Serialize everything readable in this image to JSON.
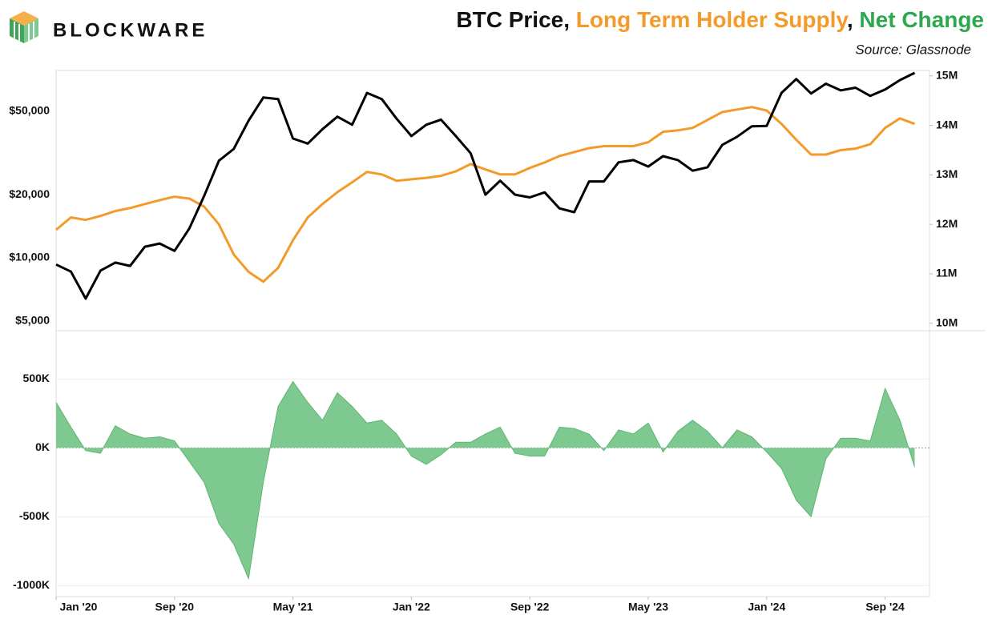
{
  "logo": "BLOCKWARE",
  "title": [
    {
      "text": "BTC Price",
      "color": "#111111"
    },
    {
      "text": ", ",
      "color": "#111111"
    },
    {
      "text": "Long Term Holder Supply",
      "color": "#f39a2b"
    },
    {
      "text": ", ",
      "color": "#111111"
    },
    {
      "text": "Net Change",
      "color": "#2ea84e"
    }
  ],
  "source": "Source: Glassnode",
  "chart_data": [
    {
      "type": "line",
      "x": [
        "2020-01",
        "2020-02",
        "2020-03",
        "2020-04",
        "2020-05",
        "2020-06",
        "2020-07",
        "2020-08",
        "2020-09",
        "2020-10",
        "2020-11",
        "2020-12",
        "2021-01",
        "2021-02",
        "2021-03",
        "2021-04",
        "2021-05",
        "2021-06",
        "2021-07",
        "2021-08",
        "2021-09",
        "2021-10",
        "2021-11",
        "2021-12",
        "2022-01",
        "2022-02",
        "2022-03",
        "2022-04",
        "2022-05",
        "2022-06",
        "2022-07",
        "2022-08",
        "2022-09",
        "2022-10",
        "2022-11",
        "2022-12",
        "2023-01",
        "2023-02",
        "2023-03",
        "2023-04",
        "2023-05",
        "2023-06",
        "2023-07",
        "2023-08",
        "2023-09",
        "2023-10",
        "2023-11",
        "2023-12",
        "2024-01",
        "2024-02",
        "2024-03",
        "2024-04",
        "2024-05",
        "2024-06",
        "2024-07",
        "2024-08",
        "2024-09",
        "2024-10",
        "2024-11"
      ],
      "xlim": [
        "2020-01",
        "2024-12"
      ],
      "log_scale": true,
      "ylim": [
        4500,
        78000
      ],
      "yticks": [
        {
          "value": 5000,
          "label": "$5,000"
        },
        {
          "value": 10000,
          "label": "$10,000"
        },
        {
          "value": 20000,
          "label": "$20,000"
        },
        {
          "value": 50000,
          "label": "$50,000"
        }
      ],
      "y2lim": [
        9.85,
        15.11
      ],
      "y2ticks": [
        {
          "value": 10,
          "label": "10M"
        },
        {
          "value": 11,
          "label": "11M"
        },
        {
          "value": 12,
          "label": "12M"
        },
        {
          "value": 13,
          "label": "13M"
        },
        {
          "value": 14,
          "label": "14M"
        },
        {
          "value": 15,
          "label": "15M"
        }
      ],
      "series": [
        {
          "color": "#000000",
          "values": [
            9300,
            8600,
            6400,
            8700,
            9500,
            9150,
            11300,
            11700,
            10800,
            13800,
            19700,
            29000,
            33000,
            45000,
            58000,
            57000,
            37000,
            35000,
            41000,
            47000,
            43000,
            61000,
            57000,
            46000,
            38000,
            43000,
            45500,
            38000,
            31500,
            20000,
            23300,
            20000,
            19400,
            20500,
            17200,
            16500,
            23100,
            23100,
            28500,
            29200,
            27200,
            30500,
            29200,
            26000,
            27000,
            34500,
            37700,
            42300,
            42500,
            61000,
            71000,
            60600,
            67500,
            62700,
            64600,
            59000,
            63300,
            70200,
            76000
          ]
        },
        {
          "color": "#f39a2b",
          "axis": "y2",
          "values": [
            11.89,
            12.14,
            12.09,
            12.17,
            12.27,
            12.33,
            12.41,
            12.49,
            12.56,
            12.52,
            12.36,
            12.0,
            11.39,
            11.04,
            10.84,
            11.12,
            11.68,
            12.14,
            12.41,
            12.65,
            12.85,
            13.06,
            13.01,
            12.88,
            12.91,
            12.94,
            12.98,
            13.07,
            13.22,
            13.11,
            13.01,
            13.01,
            13.14,
            13.25,
            13.38,
            13.46,
            13.54,
            13.58,
            13.58,
            13.58,
            13.66,
            13.87,
            13.9,
            13.95,
            14.11,
            14.27,
            14.32,
            14.37,
            14.3,
            14.03,
            13.71,
            13.41,
            13.41,
            13.5,
            13.53,
            13.62,
            13.95,
            14.14,
            14.03
          ]
        }
      ]
    },
    {
      "type": "area",
      "x": [
        "2020-01",
        "2020-02",
        "2020-03",
        "2020-04",
        "2020-05",
        "2020-06",
        "2020-07",
        "2020-08",
        "2020-09",
        "2020-10",
        "2020-11",
        "2020-12",
        "2021-01",
        "2021-02",
        "2021-03",
        "2021-04",
        "2021-05",
        "2021-06",
        "2021-07",
        "2021-08",
        "2021-09",
        "2021-10",
        "2021-11",
        "2021-12",
        "2022-01",
        "2022-02",
        "2022-03",
        "2022-04",
        "2022-05",
        "2022-06",
        "2022-07",
        "2022-08",
        "2022-09",
        "2022-10",
        "2022-11",
        "2022-12",
        "2023-01",
        "2023-02",
        "2023-03",
        "2023-04",
        "2023-05",
        "2023-06",
        "2023-07",
        "2023-08",
        "2023-09",
        "2023-10",
        "2023-11",
        "2023-12",
        "2024-01",
        "2024-02",
        "2024-03",
        "2024-04",
        "2024-05",
        "2024-06",
        "2024-07",
        "2024-08",
        "2024-09",
        "2024-10",
        "2024-11"
      ],
      "xlim": [
        "2020-01",
        "2024-12"
      ],
      "xticks": [
        {
          "value": "2020-01",
          "label": "Jan '20"
        },
        {
          "value": "2020-09",
          "label": "Sep '20"
        },
        {
          "value": "2021-05",
          "label": "May '21"
        },
        {
          "value": "2022-01",
          "label": "Jan '22"
        },
        {
          "value": "2022-09",
          "label": "Sep '22"
        },
        {
          "value": "2023-05",
          "label": "May '23"
        },
        {
          "value": "2024-01",
          "label": "Jan '24"
        },
        {
          "value": "2024-09",
          "label": "Sep '24"
        }
      ],
      "ylim": [
        -1080,
        850
      ],
      "yticks": [
        {
          "value": -1000,
          "label": "-1000K"
        },
        {
          "value": -500,
          "label": "-500K"
        },
        {
          "value": 0,
          "label": "0K"
        },
        {
          "value": 500,
          "label": "500K"
        }
      ],
      "grid": true,
      "series": [
        {
          "color": "#7dc98f",
          "values": [
            330,
            150,
            -20,
            -40,
            160,
            100,
            70,
            80,
            50,
            -100,
            -250,
            -550,
            -700,
            -950,
            -250,
            300,
            480,
            330,
            200,
            400,
            300,
            180,
            200,
            100,
            -60,
            -120,
            -50,
            40,
            40,
            100,
            150,
            -40,
            -60,
            -60,
            150,
            140,
            100,
            -20,
            130,
            100,
            180,
            -30,
            120,
            200,
            120,
            0,
            130,
            80,
            -30,
            -150,
            -380,
            -500,
            -80,
            70,
            70,
            50,
            430,
            200,
            -140
          ]
        }
      ]
    }
  ]
}
